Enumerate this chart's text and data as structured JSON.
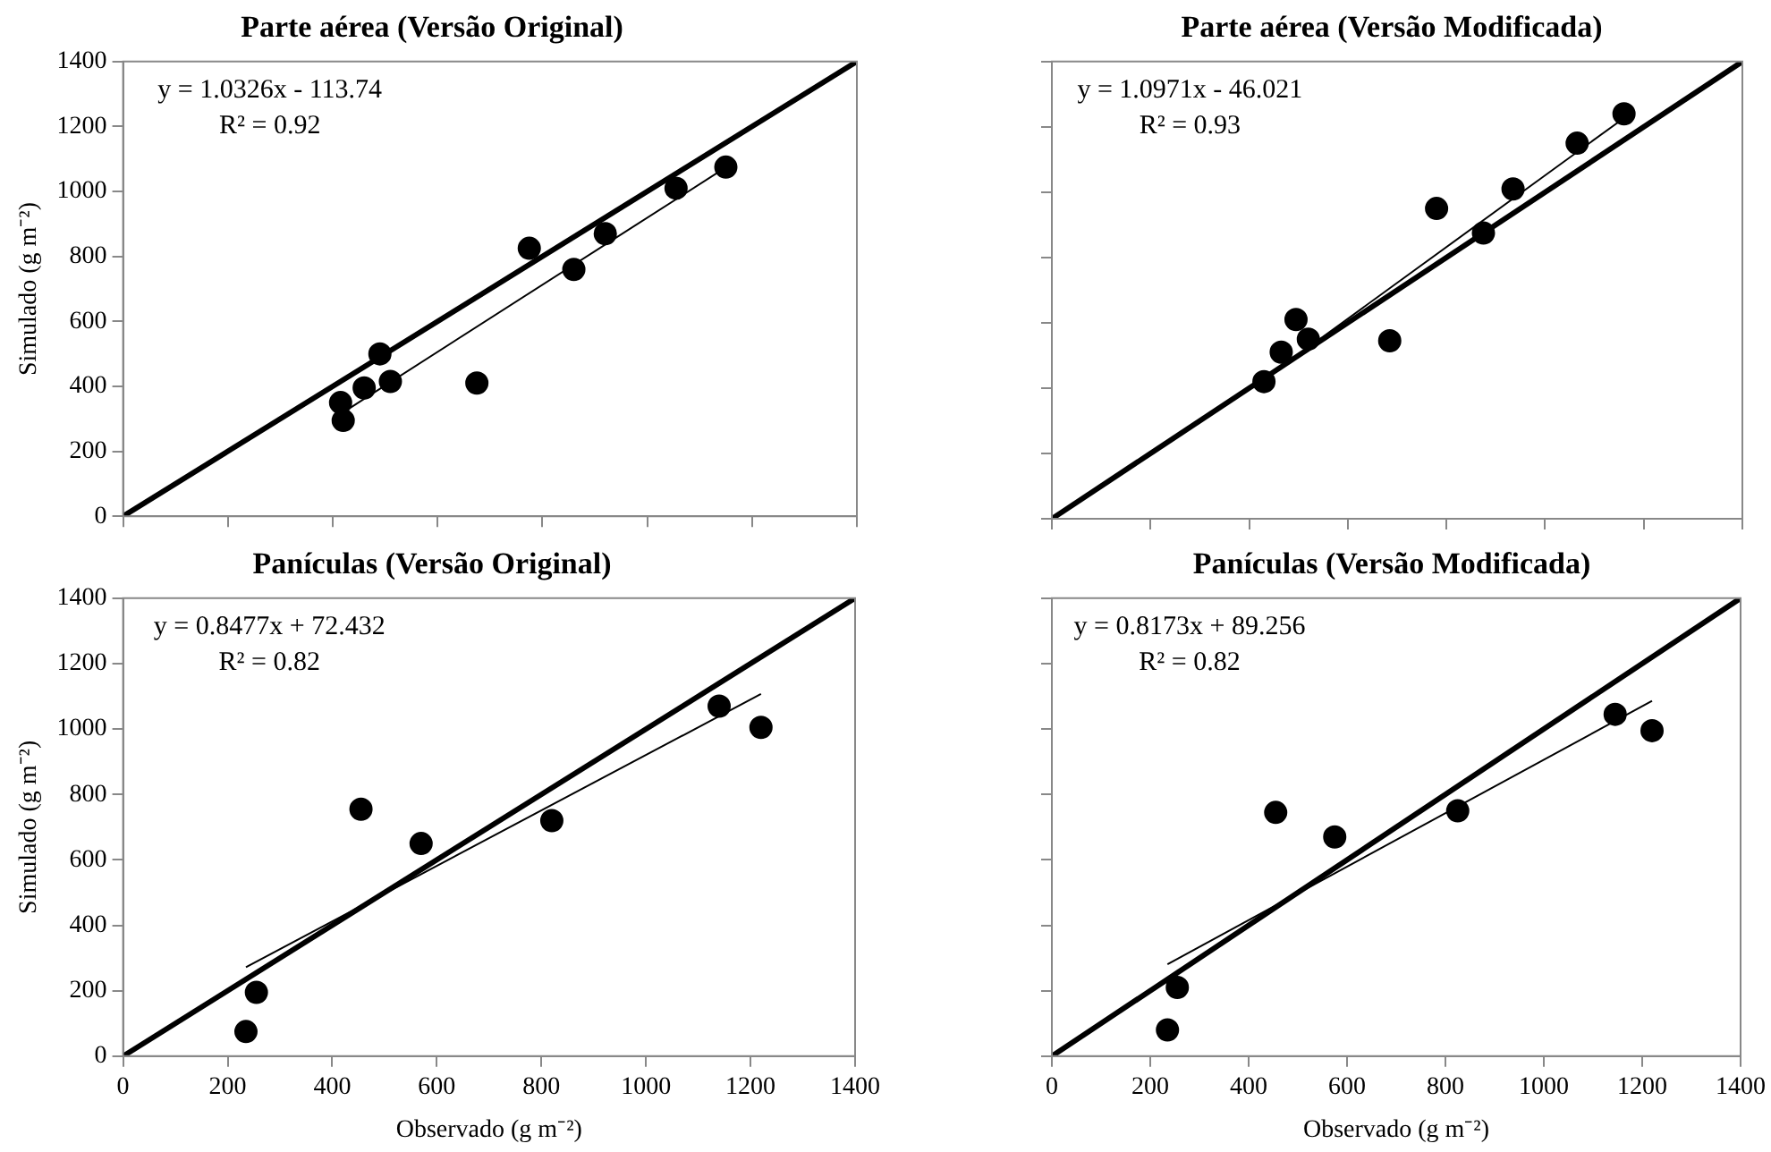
{
  "chart_data": [
    {
      "type": "scatter",
      "title": "Parte aérea (Versão Original)",
      "ylabel": "Simulado (g m⁻²)",
      "xlim": [
        0,
        1400
      ],
      "ylim": [
        0,
        1400
      ],
      "xticks": [
        0,
        200,
        400,
        600,
        800,
        1000,
        1200,
        1400
      ],
      "yticks": [
        0,
        200,
        400,
        600,
        800,
        1000,
        1200,
        1400
      ],
      "grid": false,
      "legend": false,
      "tick_labels": "y",
      "annotations": [
        "y = 1.0326x - 113.74",
        "R² = 0.92"
      ],
      "series": [
        {
          "type": "scatter",
          "color": "#000000",
          "marker": "circle",
          "x": [
            415,
            420,
            460,
            490,
            510,
            675,
            775,
            860,
            920,
            1055,
            1150
          ],
          "values": [
            350,
            295,
            395,
            500,
            415,
            410,
            825,
            760,
            870,
            1010,
            1075
          ]
        },
        {
          "type": "line",
          "color": "#000000",
          "marker": "none",
          "line_style": "solid",
          "x": [
            0,
            1400
          ],
          "values": [
            0,
            1400
          ]
        },
        {
          "type": "line",
          "color": "#000000",
          "marker": "none",
          "line_style": "solid",
          "x": [
            415,
            1150
          ],
          "values": [
            315,
            1074
          ]
        }
      ]
    },
    {
      "type": "scatter",
      "title": "Parte aérea (Versão Modificada)",
      "xlim": [
        0,
        1400
      ],
      "ylim": [
        0,
        1400
      ],
      "xticks": [
        0,
        200,
        400,
        600,
        800,
        1000,
        1200,
        1400
      ],
      "yticks": [
        0,
        200,
        400,
        600,
        800,
        1000,
        1200,
        1400
      ],
      "grid": false,
      "legend": false,
      "tick_labels": false,
      "annotations": [
        "y = 1.0971x - 46.021",
        "R² = 0.93"
      ],
      "series": [
        {
          "type": "scatter",
          "color": "#000000",
          "marker": "circle",
          "x": [
            430,
            465,
            495,
            520,
            685,
            780,
            875,
            935,
            1065,
            1160
          ],
          "values": [
            420,
            510,
            610,
            550,
            545,
            950,
            875,
            1010,
            1150,
            1240
          ]
        },
        {
          "type": "line",
          "color": "#000000",
          "marker": "none",
          "line_style": "solid",
          "x": [
            0,
            1400
          ],
          "values": [
            0,
            1400
          ]
        },
        {
          "type": "line",
          "color": "#000000",
          "marker": "none",
          "line_style": "solid",
          "x": [
            430,
            1160
          ],
          "values": [
            426,
            1227
          ]
        }
      ]
    },
    {
      "type": "scatter",
      "title": "Panículas (Versão Original)",
      "xlabel": "Observado (g m⁻²)",
      "ylabel": "Simulado (g m⁻²)",
      "xlim": [
        0,
        1400
      ],
      "ylim": [
        0,
        1400
      ],
      "xticks": [
        0,
        200,
        400,
        600,
        800,
        1000,
        1200,
        1400
      ],
      "yticks": [
        0,
        200,
        400,
        600,
        800,
        1000,
        1200,
        1400
      ],
      "grid": false,
      "legend": false,
      "annotations": [
        "y = 0.8477x + 72.432",
        "R² = 0.82"
      ],
      "series": [
        {
          "type": "scatter",
          "color": "#000000",
          "marker": "circle",
          "x": [
            235,
            255,
            455,
            570,
            820,
            1140,
            1220
          ],
          "values": [
            75,
            195,
            755,
            650,
            720,
            1070,
            1005
          ]
        },
        {
          "type": "line",
          "color": "#000000",
          "marker": "none",
          "line_style": "solid",
          "x": [
            0,
            1400
          ],
          "values": [
            0,
            1400
          ]
        },
        {
          "type": "line",
          "color": "#000000",
          "marker": "none",
          "line_style": "solid",
          "x": [
            235,
            1220
          ],
          "values": [
            272,
            1107
          ]
        }
      ]
    },
    {
      "type": "scatter",
      "title": "Panículas (Versão Modificada)",
      "xlabel": "Observado (g m⁻²)",
      "xlim": [
        0,
        1400
      ],
      "ylim": [
        0,
        1400
      ],
      "xticks": [
        0,
        200,
        400,
        600,
        800,
        1000,
        1200,
        1400
      ],
      "yticks": [
        0,
        200,
        400,
        600,
        800,
        1000,
        1200,
        1400
      ],
      "grid": false,
      "legend": false,
      "tick_labels": "x",
      "annotations": [
        "y = 0.8173x + 89.256",
        "R² = 0.82"
      ],
      "series": [
        {
          "type": "scatter",
          "color": "#000000",
          "marker": "circle",
          "x": [
            235,
            255,
            455,
            575,
            825,
            1145,
            1220
          ],
          "values": [
            80,
            210,
            745,
            670,
            750,
            1045,
            995
          ]
        },
        {
          "type": "line",
          "color": "#000000",
          "marker": "none",
          "line_style": "solid",
          "x": [
            0,
            1400
          ],
          "values": [
            0,
            1400
          ]
        },
        {
          "type": "line",
          "color": "#000000",
          "marker": "none",
          "line_style": "solid",
          "x": [
            235,
            1220
          ],
          "values": [
            281,
            1086
          ]
        }
      ]
    }
  ]
}
